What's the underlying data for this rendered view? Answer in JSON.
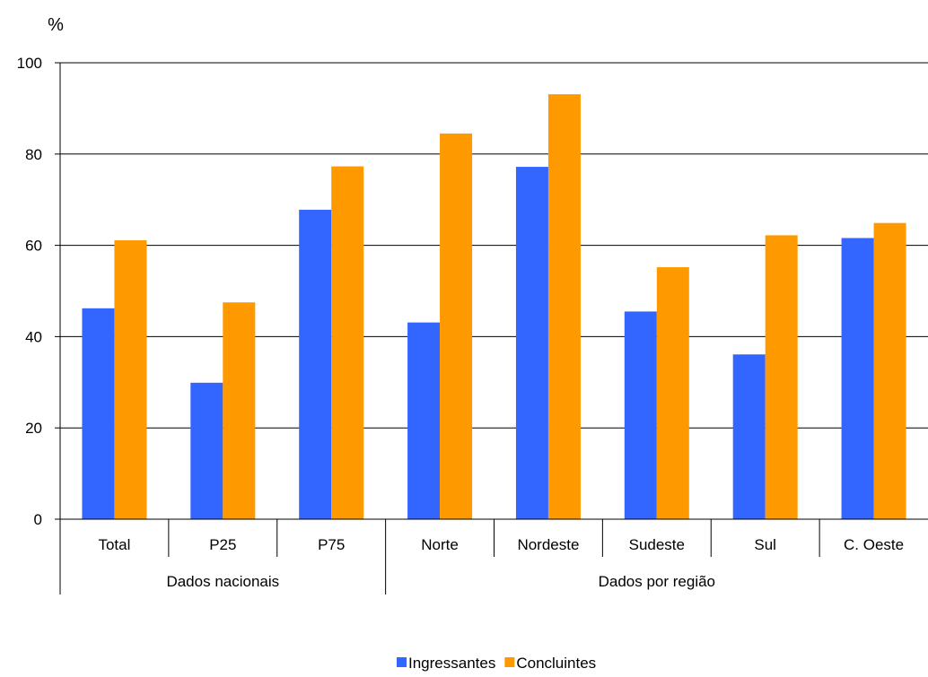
{
  "chart_data": {
    "type": "bar",
    "unit_label": "%",
    "ylim": [
      0,
      100
    ],
    "yticks": [
      0,
      20,
      40,
      60,
      80,
      100
    ],
    "grid": true,
    "categories": [
      "Total",
      "P25",
      "P75",
      "Norte",
      "Nordeste",
      "Sudeste",
      "Sul",
      "C. Oeste"
    ],
    "groups": [
      {
        "label": "Dados nacionais",
        "categories": [
          "Total",
          "P25",
          "P75"
        ]
      },
      {
        "label": "Dados por região",
        "categories": [
          "Norte",
          "Nordeste",
          "Sudeste",
          "Sul",
          "C. Oeste"
        ]
      }
    ],
    "series": [
      {
        "name": "Ingressantes",
        "color": "#3366ff",
        "values": [
          46.2,
          29.9,
          67.8,
          43.1,
          77.2,
          45.5,
          36.1,
          61.6
        ]
      },
      {
        "name": "Concluintes",
        "color": "#ff9900",
        "values": [
          61.1,
          47.5,
          77.3,
          84.5,
          93.1,
          55.2,
          62.2,
          64.9
        ]
      }
    ],
    "legend_position": "bottom"
  }
}
